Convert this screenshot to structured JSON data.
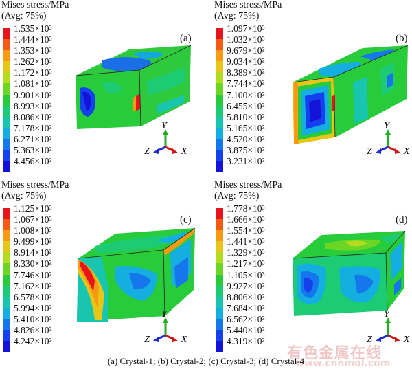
{
  "panels": [
    {
      "legend_title": "Mises stress/MPa",
      "legend_sub": "(Avg: 75%)",
      "label": "(a)",
      "ticks": [
        "1.535×10³",
        "1.444×10³",
        "1.353×10³",
        "1.262×10³",
        "1.172×10³",
        "1.081×10³",
        "9.901×10²",
        "8.993×10²",
        "8.086×10²",
        "7.178×10²",
        "6.271×10²",
        "5.363×10²",
        "4.456×10²"
      ]
    },
    {
      "legend_title": "Mises stress/MPa",
      "legend_sub": "(Avg: 75%)",
      "label": "(b)",
      "ticks": [
        "1.097×10³",
        "1.032×10³",
        "9.679×10²",
        "9.034×10²",
        "8.389×10²",
        "7.744×10²",
        "7.100×10²",
        "6.455×10²",
        "5.810×10²",
        "5.165×10²",
        "4.520×10²",
        "3.875×10²",
        "3.231×10²"
      ]
    },
    {
      "legend_title": "Mises stress/MPa",
      "legend_sub": "(Avg: 75%)",
      "label": "(c)",
      "ticks": [
        "1.125×10³",
        "1.067×10³",
        "1.008×10³",
        "9.499×10²",
        "8.914×10²",
        "8.330×10²",
        "7.746×10²",
        "7.162×10²",
        "6.578×10²",
        "5.994×10²",
        "5.410×10²",
        "4.826×10²",
        "4.242×10²"
      ]
    },
    {
      "legend_title": "Mises stress/MPa",
      "legend_sub": "(Avg: 75%)",
      "label": "(d)",
      "ticks": [
        "1.778×10³",
        "1.666×10³",
        "1.554×10³",
        "1.441×10³",
        "1.329×10³",
        "1.217×10³",
        "1.105×10³",
        "9.927×10²",
        "8.806×10²",
        "7.684×10²",
        "6.562×10²",
        "5.440×10²",
        "4.319×10²"
      ]
    }
  ],
  "colormap": [
    "#e8141c",
    "#f55a14",
    "#fb9a12",
    "#e8c618",
    "#b4dc1e",
    "#6cd624",
    "#28cc3a",
    "#1ccb74",
    "#18c6b0",
    "#14aee0",
    "#1478ec",
    "#1440f0",
    "#1414d8"
  ],
  "axes": {
    "y": "Y",
    "z": "Z",
    "x": "X"
  },
  "caption": "(a) Crystal-1; (b) Crystal-2; (c) Crystal-3; (d) Crystal-4",
  "watermark": "有色金属在线",
  "watermark_url": "www.cnnmol.com"
}
